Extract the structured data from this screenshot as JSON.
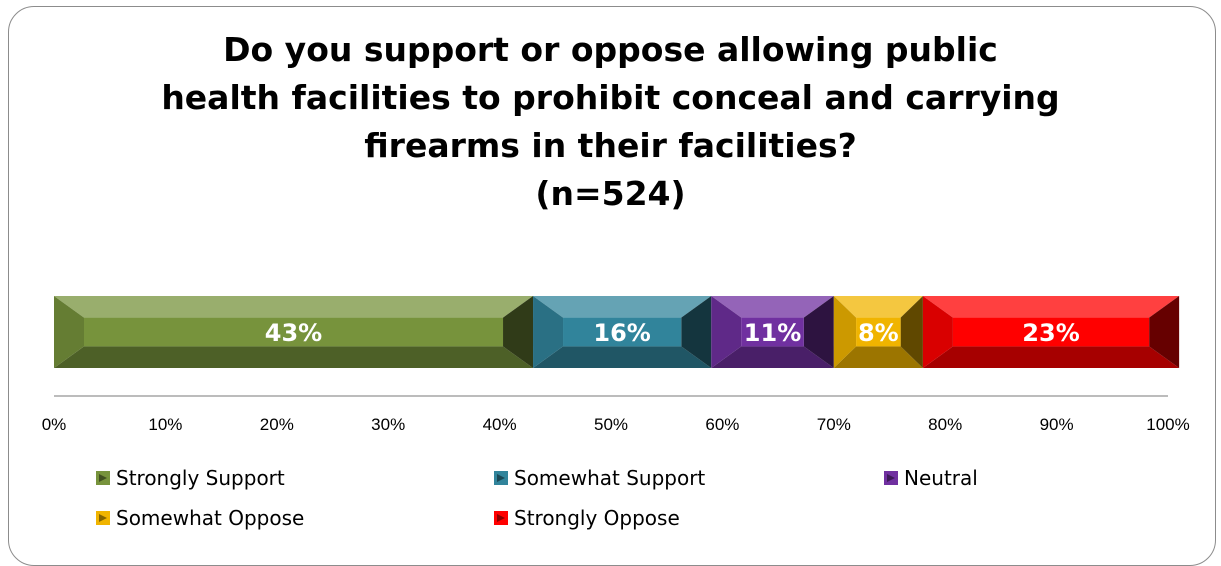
{
  "chart_data": {
    "type": "bar",
    "orientation": "horizontal-stacked",
    "title_lines": [
      "Do you support or oppose allowing public",
      "health facilities to prohibit conceal and carrying",
      "firearms in their facilities?",
      "(n=524)"
    ],
    "series": [
      {
        "name": "Strongly Support",
        "value": 43,
        "label": "43%",
        "color": "#77933c"
      },
      {
        "name": "Somewhat Support",
        "value": 16,
        "label": "16%",
        "color": "#31849b"
      },
      {
        "name": "Neutral",
        "value": 11,
        "label": "11%",
        "color": "#7030a0"
      },
      {
        "name": "Somewhat Oppose",
        "value": 8,
        "label": "8%",
        "color": "#f0b400"
      },
      {
        "name": "Strongly Oppose",
        "value": 23,
        "label": "23%",
        "color": "#ff0000"
      }
    ],
    "xlim": [
      0,
      100
    ],
    "x_ticks": [
      "0%",
      "10%",
      "20%",
      "30%",
      "40%",
      "50%",
      "60%",
      "70%",
      "80%",
      "90%",
      "100%"
    ],
    "legend_position": "bottom",
    "grid": false
  }
}
